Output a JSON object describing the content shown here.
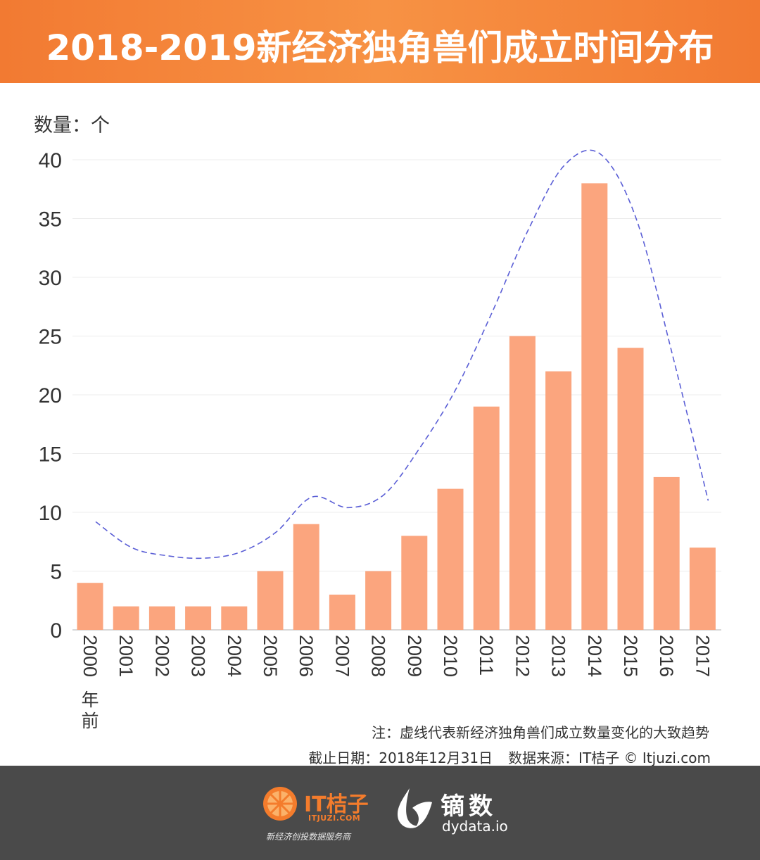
{
  "header": {
    "title": "2018-2019新经济独角兽们成立时间分布"
  },
  "chart_data": {
    "type": "bar",
    "title": "2018-2019新经济独角兽们成立时间分布",
    "ylabel": "数量：个",
    "xlabel": "",
    "categories": [
      "2000年前",
      "2001",
      "2002",
      "2003",
      "2004",
      "2005",
      "2006",
      "2007",
      "2008",
      "2009",
      "2010",
      "2011",
      "2012",
      "2013",
      "2014",
      "2015",
      "2016",
      "2017"
    ],
    "values": [
      4,
      2,
      2,
      2,
      2,
      5,
      9,
      3,
      5,
      8,
      12,
      19,
      25,
      22,
      38,
      24,
      13,
      7
    ],
    "ylim": [
      0,
      40
    ],
    "yticks": [
      0,
      5,
      10,
      15,
      20,
      25,
      30,
      35,
      40
    ],
    "grid": true,
    "trend_line": {
      "style": "dashed",
      "values": [
        9.2,
        7.0,
        6.3,
        6.1,
        6.6,
        8.3,
        11.3,
        10.4,
        11.5,
        15.5,
        20.5,
        27.0,
        34.0,
        39.5,
        40.5,
        35.0,
        23.5,
        11.0
      ]
    },
    "bar_color": "#fba57e",
    "trend_color": "#5b5fd6"
  },
  "notes": {
    "line1": "注：虚线代表新经济独角兽们成立数量变化的大致趋势",
    "cutoff": "截止日期：2018年12月31日",
    "source": "数据来源：IT桔子 © Itjuzi.com"
  },
  "footer": {
    "it_brand": "IT桔子",
    "it_domain": "ITJUZI.COM",
    "it_slogan": "新经济创投数据服务商",
    "dy_brand": "镝数",
    "dy_domain": "dydata.io"
  }
}
